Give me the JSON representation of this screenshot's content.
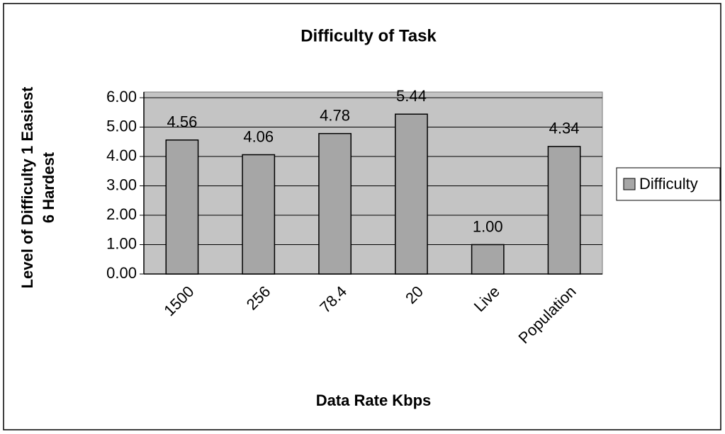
{
  "chart_data": {
    "type": "bar",
    "title": "Difficulty of Task",
    "x_label": "Data Rate Kbps",
    "y_label": [
      "Level of Difficulty 1 Easiest",
      "6 Hardest"
    ],
    "categories": [
      "1500",
      "256",
      "78.4",
      "20",
      "Live",
      "Population"
    ],
    "series": [
      {
        "name": "Difficulty",
        "color": "#a6a6a6",
        "values": [
          4.56,
          4.06,
          4.78,
          5.44,
          1.0,
          4.34
        ],
        "value_labels": [
          "4.56",
          "4.06",
          "4.78",
          "5.44",
          "1.00",
          "4.34"
        ]
      }
    ],
    "ylim": [
      0,
      6
    ],
    "yticks": [
      {
        "value": 0,
        "label": "0.00"
      },
      {
        "value": 1,
        "label": "1.00"
      },
      {
        "value": 2,
        "label": "2.00"
      },
      {
        "value": 3,
        "label": "3.00"
      },
      {
        "value": 4,
        "label": "4.00"
      },
      {
        "value": 5,
        "label": "5.00"
      },
      {
        "value": 6,
        "label": "6.00"
      }
    ],
    "grid": true,
    "legend": "right"
  }
}
